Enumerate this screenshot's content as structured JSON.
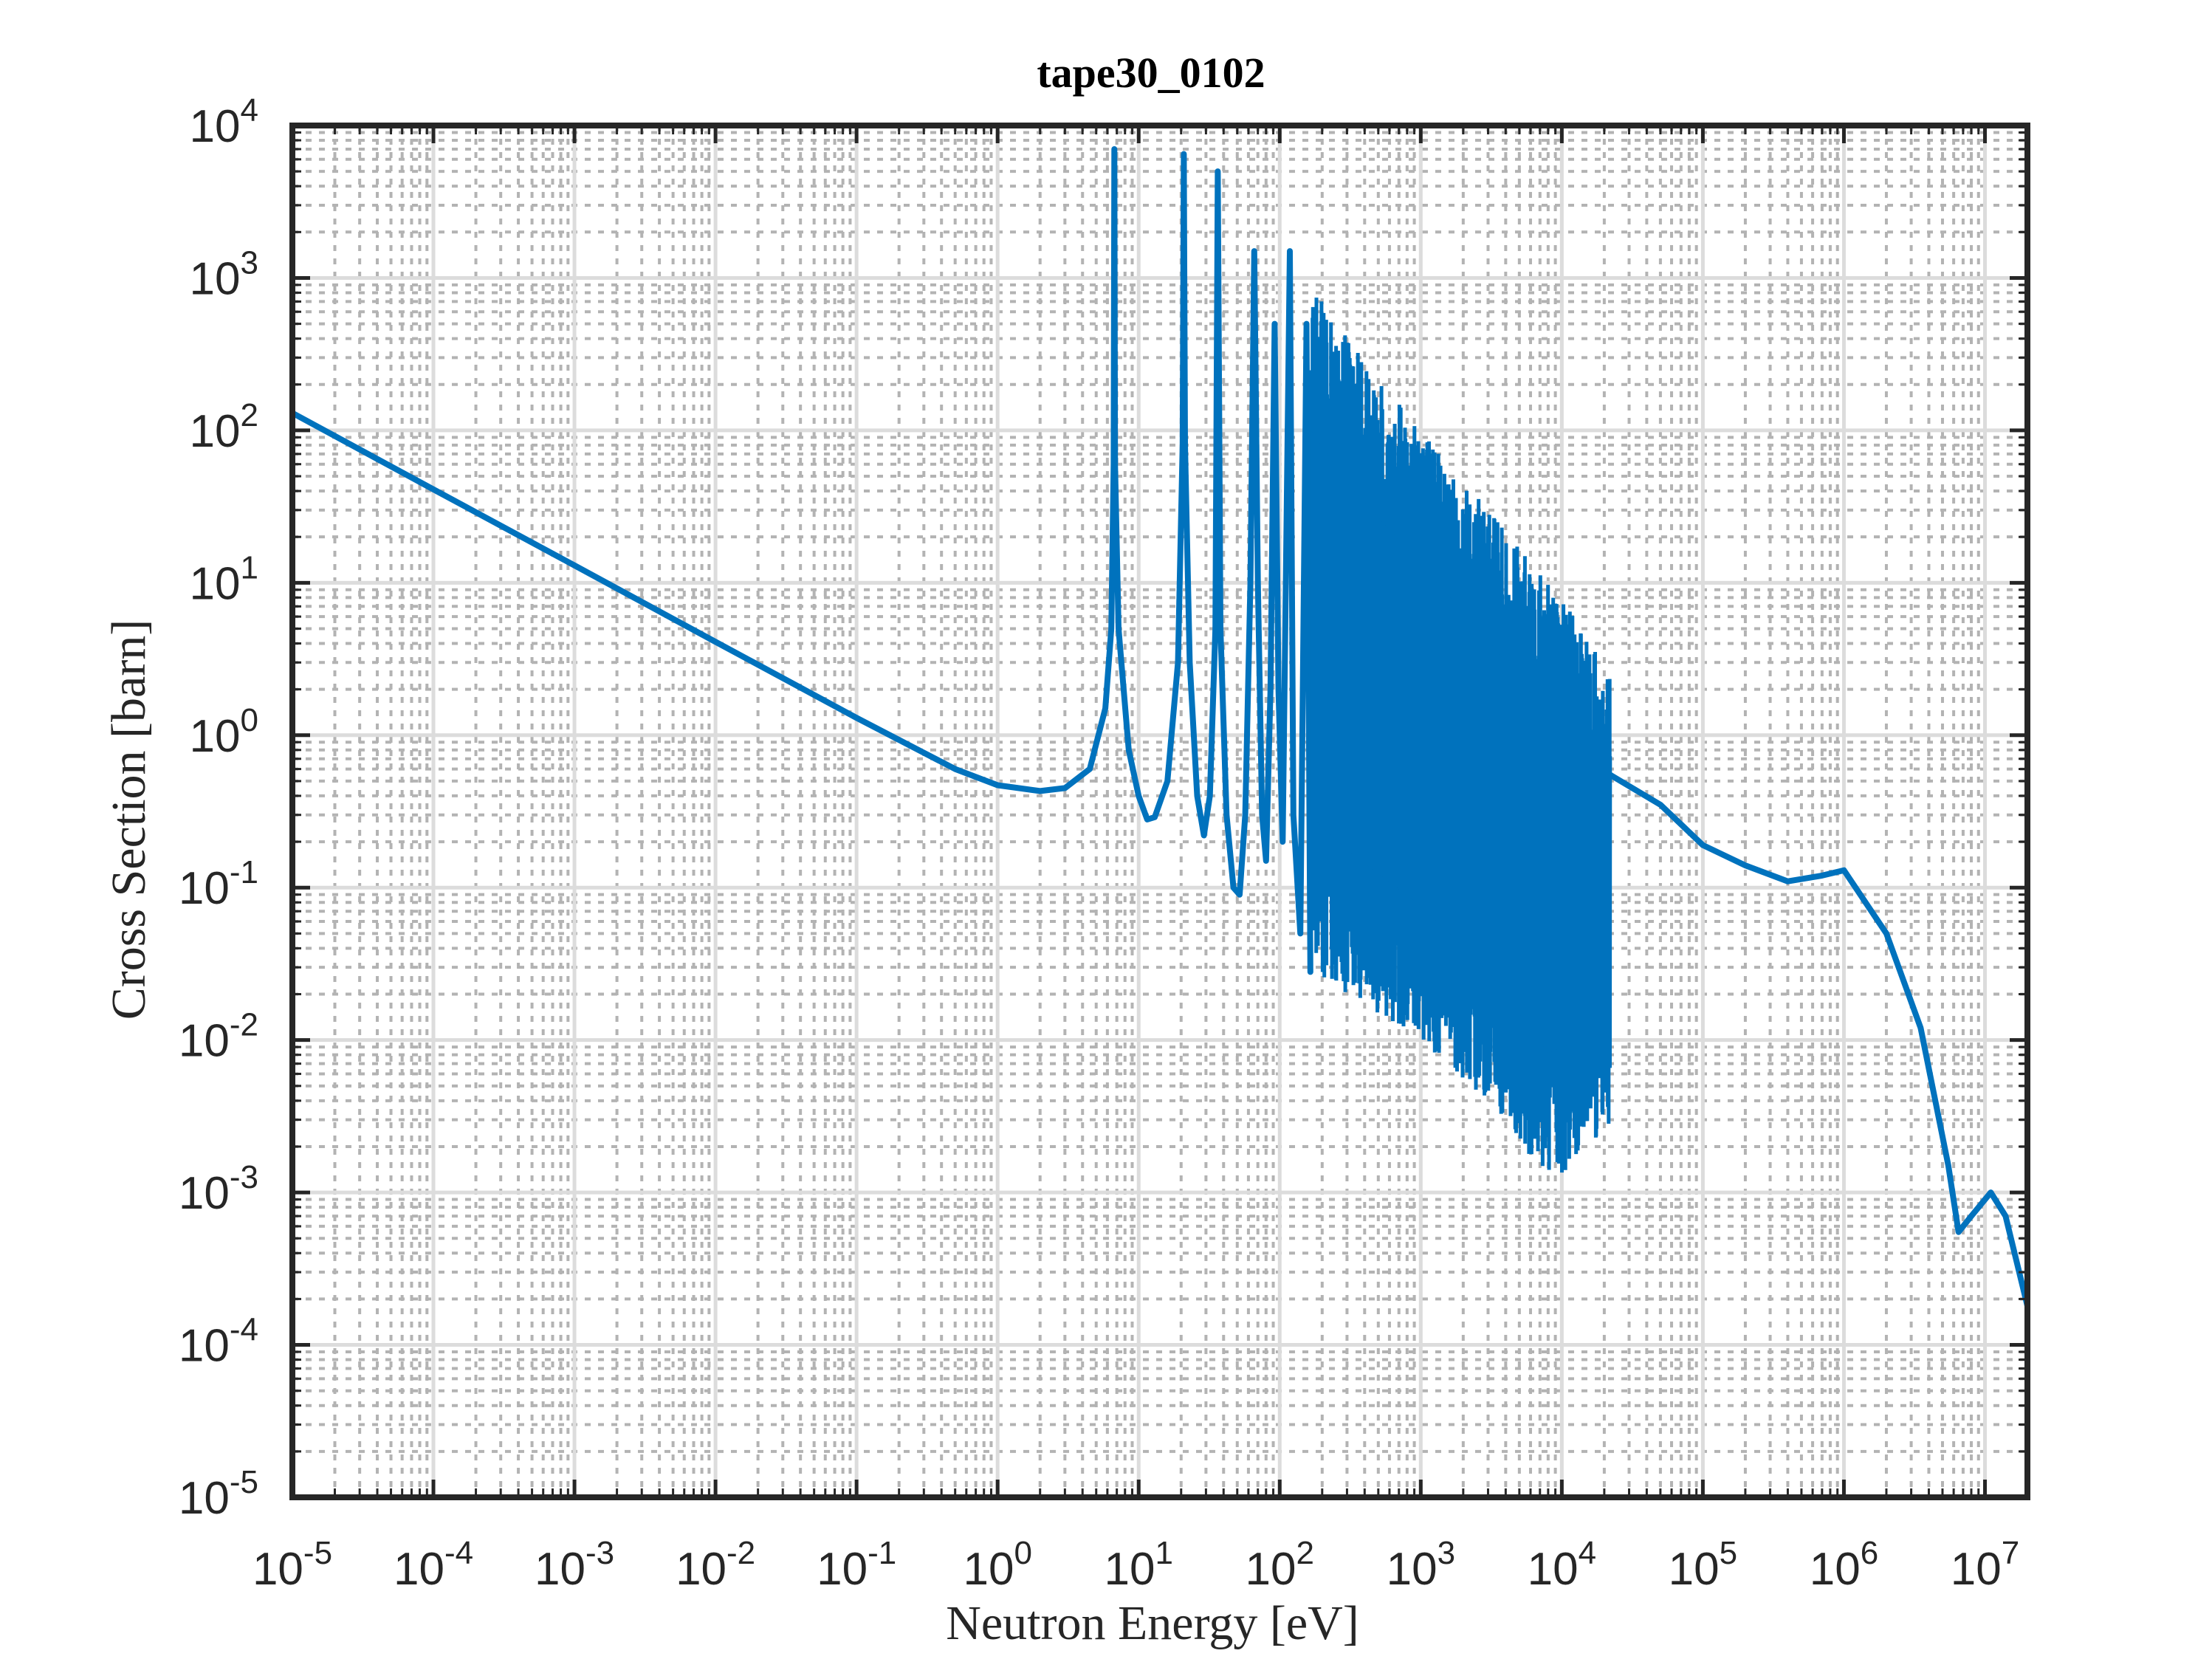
{
  "chart_data": {
    "type": "line",
    "title": "tape30_0102",
    "xlabel": "Neutron Energy [eV]",
    "ylabel": "Cross Section [barn]",
    "xscale": "log",
    "yscale": "log",
    "xlim": [
      1e-05,
      20000000.0
    ],
    "ylim": [
      1e-05,
      10000.0
    ],
    "grid": true,
    "minor_grid": true,
    "x_ticks": [
      {
        "base": "10",
        "exp": "-5"
      },
      {
        "base": "10",
        "exp": "-4"
      },
      {
        "base": "10",
        "exp": "-3"
      },
      {
        "base": "10",
        "exp": "-2"
      },
      {
        "base": "10",
        "exp": "-1"
      },
      {
        "base": "10",
        "exp": "0"
      },
      {
        "base": "10",
        "exp": "1"
      },
      {
        "base": "10",
        "exp": "2"
      },
      {
        "base": "10",
        "exp": "3"
      },
      {
        "base": "10",
        "exp": "4"
      },
      {
        "base": "10",
        "exp": "5"
      },
      {
        "base": "10",
        "exp": "6"
      },
      {
        "base": "10",
        "exp": "7"
      }
    ],
    "y_ticks": [
      {
        "base": "10",
        "exp": "-5"
      },
      {
        "base": "10",
        "exp": "-4"
      },
      {
        "base": "10",
        "exp": "-3"
      },
      {
        "base": "10",
        "exp": "-2"
      },
      {
        "base": "10",
        "exp": "-1"
      },
      {
        "base": "10",
        "exp": "0"
      },
      {
        "base": "10",
        "exp": "1"
      },
      {
        "base": "10",
        "exp": "2"
      },
      {
        "base": "10",
        "exp": "3"
      },
      {
        "base": "10",
        "exp": "4"
      }
    ],
    "series": [
      {
        "color": "#0072BD",
        "smooth_points": [
          [
            1e-05,
            130
          ],
          [
            0.0001,
            41
          ],
          [
            0.001,
            13
          ],
          [
            0.01,
            4.1
          ],
          [
            0.1,
            1.3
          ],
          [
            0.5,
            0.6
          ],
          [
            1.0,
            0.47
          ],
          [
            2.0,
            0.43
          ],
          [
            3.0,
            0.45
          ],
          [
            4.5,
            0.6
          ],
          [
            5.8,
            1.5
          ],
          [
            6.4,
            5
          ],
          [
            6.65,
            60
          ],
          [
            6.72,
            7000
          ],
          [
            6.8,
            60
          ],
          [
            7.2,
            5
          ],
          [
            8.5,
            0.8
          ],
          [
            10,
            0.4
          ],
          [
            11.5,
            0.28
          ],
          [
            13,
            0.29
          ],
          [
            16,
            0.5
          ],
          [
            19,
            3
          ],
          [
            20.5,
            80
          ],
          [
            20.9,
            6500
          ],
          [
            21.3,
            80
          ],
          [
            23,
            3
          ],
          [
            26,
            0.4
          ],
          [
            29,
            0.22
          ],
          [
            32,
            0.4
          ],
          [
            35,
            5
          ],
          [
            36.4,
            5000
          ],
          [
            38,
            5
          ],
          [
            42,
            0.3
          ],
          [
            47,
            0.1
          ],
          [
            52,
            0.09
          ],
          [
            57,
            0.3
          ],
          [
            62,
            10
          ],
          [
            66,
            1500
          ],
          [
            70,
            10
          ],
          [
            75,
            0.3
          ],
          [
            80,
            0.15
          ],
          [
            86,
            2
          ],
          [
            92,
            500
          ],
          [
            98,
            2
          ],
          [
            105,
            0.2
          ],
          [
            118,
            1500
          ],
          [
            125,
            0.3
          ],
          [
            140,
            0.05
          ],
          [
            155,
            500
          ],
          [
            165,
            0.028
          ]
        ],
        "dense_band": {
          "x_start": 165,
          "x_end": 22000,
          "max_envelope": [
            [
              165,
              1000
            ],
            [
              300,
              400
            ],
            [
              1000,
              100
            ],
            [
              3000,
              30
            ],
            [
              10000,
              8
            ],
            [
              22000,
              2.5
            ]
          ],
          "min_envelope": [
            [
              165,
              0.03
            ],
            [
              300,
              0.02
            ],
            [
              1000,
              0.01
            ],
            [
              3000,
              0.004
            ],
            [
              8000,
              0.0011
            ],
            [
              22000,
              0.0025
            ]
          ]
        },
        "tail_points": [
          [
            22000,
            0.55
          ],
          [
            50000,
            0.35
          ],
          [
            100000,
            0.19
          ],
          [
            200000,
            0.14
          ],
          [
            400000,
            0.11
          ],
          [
            700000,
            0.12
          ],
          [
            1000000,
            0.13
          ],
          [
            2000000,
            0.05
          ],
          [
            3500000,
            0.012
          ],
          [
            5500000,
            0.0015
          ],
          [
            6500000,
            0.00055
          ],
          [
            8000000,
            0.0007
          ],
          [
            11000000,
            0.001
          ],
          [
            14000000,
            0.0007
          ],
          [
            20000000,
            0.00018
          ]
        ]
      }
    ]
  }
}
